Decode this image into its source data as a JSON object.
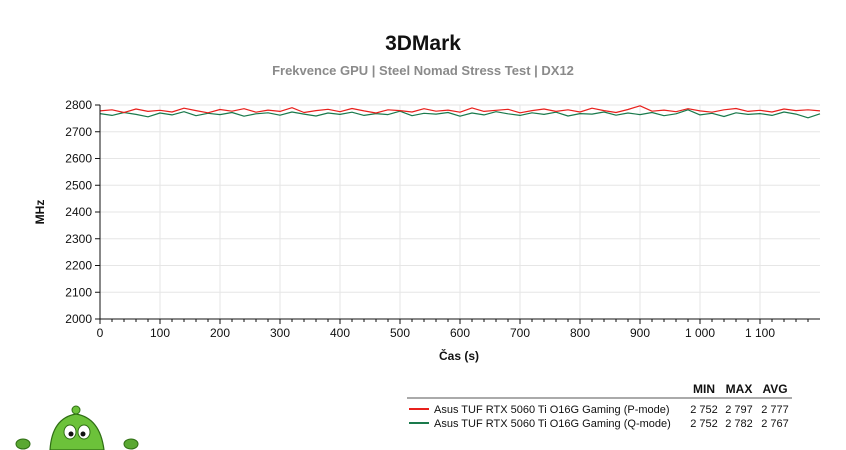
{
  "chart_data": {
    "type": "line",
    "title": "3DMark",
    "subtitle": "Frekvence GPU | Steel Nomad Stress Test | DX12",
    "xlabel": "Čas (s)",
    "ylabel": "MHz",
    "xlim": [
      0,
      1200
    ],
    "ylim": [
      2000,
      2800
    ],
    "x_ticks": [
      0,
      100,
      200,
      300,
      400,
      500,
      600,
      700,
      800,
      900,
      1000,
      1100
    ],
    "x_tick_labels": [
      "0",
      "100",
      "200",
      "300",
      "400",
      "500",
      "600",
      "700",
      "800",
      "900",
      "1 000",
      "1 100"
    ],
    "y_ticks": [
      2000,
      2100,
      2200,
      2300,
      2400,
      2500,
      2600,
      2700,
      2800
    ],
    "y_tick_labels": [
      "2000",
      "2100",
      "2200",
      "2300",
      "2400",
      "2500",
      "2600",
      "2700",
      "2800"
    ],
    "grid": true,
    "legend_position": "bottom-right",
    "stats_headers": [
      "MIN",
      "MAX",
      "AVG"
    ],
    "series": [
      {
        "name": "Asus TUF RTX 5060 Ti O16G Gaming (P-mode)",
        "color": "#e8201c",
        "min": "2 752",
        "max": "2 797",
        "avg": "2 777",
        "x": [
          0,
          20,
          40,
          60,
          80,
          100,
          120,
          140,
          160,
          180,
          200,
          220,
          240,
          260,
          280,
          300,
          320,
          340,
          360,
          380,
          400,
          420,
          440,
          460,
          480,
          500,
          520,
          540,
          560,
          580,
          600,
          620,
          640,
          660,
          680,
          700,
          720,
          740,
          760,
          780,
          800,
          820,
          840,
          860,
          880,
          900,
          920,
          940,
          960,
          980,
          1000,
          1020,
          1040,
          1060,
          1080,
          1100,
          1120,
          1140,
          1160,
          1180,
          1200
        ],
        "values": [
          2778,
          2782,
          2772,
          2785,
          2776,
          2780,
          2774,
          2788,
          2779,
          2771,
          2783,
          2777,
          2786,
          2773,
          2781,
          2776,
          2790,
          2772,
          2779,
          2784,
          2775,
          2787,
          2778,
          2770,
          2782,
          2779,
          2774,
          2786,
          2777,
          2781,
          2773,
          2789,
          2776,
          2780,
          2784,
          2771,
          2779,
          2785,
          2776,
          2782,
          2774,
          2788,
          2779,
          2772,
          2783,
          2797,
          2777,
          2781,
          2775,
          2786,
          2778,
          2773,
          2782,
          2787,
          2776,
          2780,
          2774,
          2785,
          2779,
          2782,
          2778
        ]
      },
      {
        "name": "Asus TUF RTX 5060 Ti O16G Gaming (Q-mode)",
        "color": "#1a7a4c",
        "min": "2 752",
        "max": "2 782",
        "avg": "2 767",
        "x": [
          0,
          20,
          40,
          60,
          80,
          100,
          120,
          140,
          160,
          180,
          200,
          220,
          240,
          260,
          280,
          300,
          320,
          340,
          360,
          380,
          400,
          420,
          440,
          460,
          480,
          500,
          520,
          540,
          560,
          580,
          600,
          620,
          640,
          660,
          680,
          700,
          720,
          740,
          760,
          780,
          800,
          820,
          840,
          860,
          880,
          900,
          920,
          940,
          960,
          980,
          1000,
          1020,
          1040,
          1060,
          1080,
          1100,
          1120,
          1140,
          1160,
          1180,
          1200
        ],
        "values": [
          2768,
          2761,
          2772,
          2765,
          2756,
          2770,
          2763,
          2775,
          2760,
          2769,
          2764,
          2772,
          2758,
          2767,
          2771,
          2762,
          2774,
          2766,
          2759,
          2770,
          2765,
          2773,
          2761,
          2768,
          2764,
          2777,
          2760,
          2769,
          2766,
          2772,
          2758,
          2770,
          2763,
          2775,
          2767,
          2761,
          2771,
          2765,
          2773,
          2759,
          2768,
          2766,
          2774,
          2762,
          2770,
          2764,
          2772,
          2760,
          2767,
          2782,
          2763,
          2769,
          2757,
          2771,
          2765,
          2768,
          2761,
          2774,
          2766,
          2752,
          2767
        ]
      }
    ]
  },
  "mascot": {
    "icon": "green-alien-mascot-icon"
  }
}
